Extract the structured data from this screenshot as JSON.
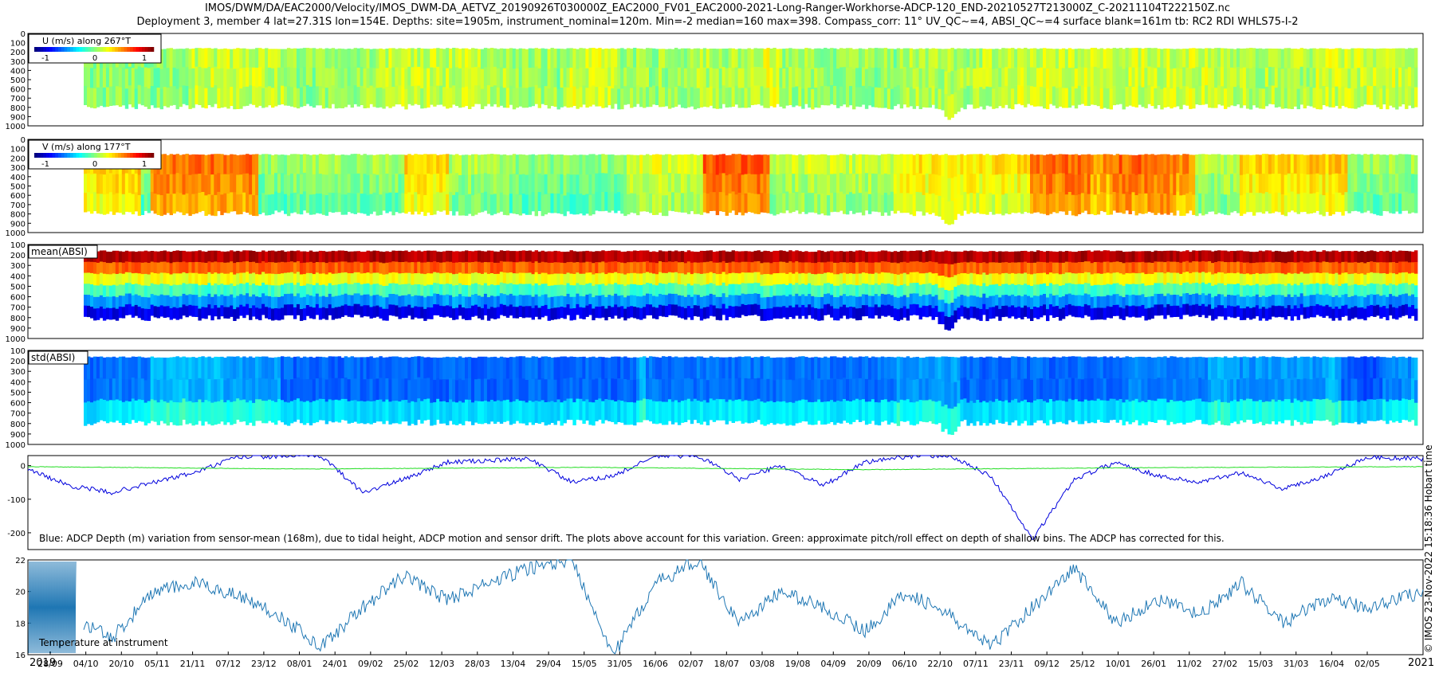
{
  "header": {
    "line1": "IMOS/DWM/DA/EAC2000/Velocity/IMOS_DWM-DA_AETVZ_20190926T030000Z_EAC2000_FV01_EAC2000-2021-Long-Ranger-Workhorse-ADCP-120_END-20210527T213000Z_C-20211104T222150Z.nc",
    "line2": "Deployment 3, member 4 lat=27.31S lon=154E. Depths: site=1905m, instrument_nominal=120m. Min=-2 median=160 max=398. Compass_corr: 11° UV_QC~=4, ABSI_QC~=4 surface blank=161m tb: RC2 RDI WHLS75-I-2"
  },
  "side_stamp": "© IMOS 23-Nov-2022 15:18:36 Hobart time",
  "year_labels": {
    "start": "2019",
    "end": "2021"
  },
  "chart_data": [
    {
      "type": "heatmap",
      "panel": "u",
      "legend_title": "U (m/s) along 267°T",
      "colorbar_ticks": [
        "-1",
        "0",
        "1"
      ],
      "y_ticks": [
        "0",
        "100",
        "200",
        "300",
        "400",
        "500",
        "600",
        "700",
        "800",
        "900",
        "1000"
      ],
      "ylim": [
        0,
        1000
      ],
      "depth_range": [
        160,
        780
      ],
      "dominant_color": "green"
    },
    {
      "type": "heatmap",
      "panel": "v",
      "legend_title": "V (m/s) along 177°T",
      "colorbar_ticks": [
        "-1",
        "0",
        "1"
      ],
      "y_ticks": [
        "0",
        "100",
        "200",
        "300",
        "400",
        "500",
        "600",
        "700",
        "800",
        "900",
        "1000"
      ],
      "ylim": [
        0,
        1000
      ],
      "depth_range": [
        160,
        780
      ],
      "dominant_color": "yellow-green"
    },
    {
      "type": "heatmap",
      "panel": "mean_absi",
      "legend_title": "mean(ABSI)",
      "y_ticks": [
        "100",
        "200",
        "300",
        "400",
        "500",
        "600",
        "700",
        "800",
        "900",
        "1000"
      ],
      "ylim": [
        100,
        1000
      ],
      "depth_range": [
        160,
        790
      ],
      "gradient": "red near surface to dark blue at depth"
    },
    {
      "type": "heatmap",
      "panel": "std_absi",
      "legend_title": "std(ABSI)",
      "y_ticks": [
        "100",
        "200",
        "300",
        "400",
        "500",
        "600",
        "700",
        "800",
        "900",
        "1000"
      ],
      "ylim": [
        100,
        1000
      ],
      "depth_range": [
        160,
        780
      ],
      "dominant_color": "blue"
    },
    {
      "type": "line",
      "panel": "depth",
      "annotation": "Blue: ADCP Depth (m) variation from sensor-mean (168m), due to tidal height, ADCP motion and sensor drift. The plots above account for this variation. Green: approximate pitch/roll effect on depth of shallow bins. The ADCP has corrected for this.",
      "y_ticks": [
        "0",
        "-100",
        "-200"
      ],
      "ylim": [
        -250,
        30
      ],
      "series": [
        {
          "color": "#0000dd",
          "x_frac": [
            0,
            0.03,
            0.06,
            0.09,
            0.12,
            0.15,
            0.18,
            0.21,
            0.24,
            0.27,
            0.3,
            0.33,
            0.36,
            0.39,
            0.42,
            0.45,
            0.48,
            0.51,
            0.54,
            0.57,
            0.6,
            0.63,
            0.66,
            0.69,
            0.72,
            0.75,
            0.78,
            0.81,
            0.84,
            0.87,
            0.9,
            0.93,
            0.96,
            1.0
          ],
          "y": [
            -10,
            -60,
            -80,
            -50,
            -20,
            25,
            28,
            30,
            -80,
            -40,
            10,
            15,
            20,
            -50,
            -30,
            28,
            30,
            -40,
            0,
            -60,
            10,
            28,
            30,
            -30,
            -220,
            -40,
            10,
            -30,
            -50,
            -20,
            -70,
            -30,
            25,
            20
          ]
        },
        {
          "color": "#22dd22",
          "x_frac": [
            0,
            0.2,
            0.4,
            0.6,
            0.8,
            1.0
          ],
          "y": [
            -3,
            -10,
            -5,
            -12,
            -6,
            -3
          ]
        }
      ]
    },
    {
      "type": "line",
      "panel": "temperature",
      "legend_title": "Temperature at instrument",
      "y_ticks": [
        "22",
        "20",
        "18",
        "16"
      ],
      "ylim": [
        16,
        22
      ],
      "series": [
        {
          "color": "#1f77b4",
          "x_frac": [
            0.04,
            0.06,
            0.09,
            0.12,
            0.15,
            0.18,
            0.21,
            0.24,
            0.27,
            0.3,
            0.33,
            0.36,
            0.39,
            0.42,
            0.45,
            0.48,
            0.51,
            0.54,
            0.57,
            0.6,
            0.63,
            0.66,
            0.69,
            0.72,
            0.75,
            0.78,
            0.81,
            0.84,
            0.87,
            0.9,
            0.93,
            0.96,
            1.0
          ],
          "y": [
            18,
            17,
            20,
            20.5,
            19.8,
            18.5,
            16.5,
            19,
            21,
            19.5,
            20.5,
            21.5,
            22,
            16,
            20.5,
            22,
            18,
            20,
            19,
            17.5,
            20,
            18.5,
            16.5,
            19,
            21.5,
            18,
            19.5,
            18.5,
            20.5,
            18,
            19.5,
            19,
            20
          ]
        }
      ]
    }
  ],
  "x_axis": {
    "tick_labels": [
      "28/09",
      "04/10",
      "20/10",
      "05/11",
      "21/11",
      "07/12",
      "23/12",
      "08/01",
      "24/01",
      "09/02",
      "25/02",
      "12/03",
      "28/03",
      "13/04",
      "29/04",
      "15/05",
      "31/05",
      "16/06",
      "02/07",
      "18/07",
      "03/08",
      "19/08",
      "04/09",
      "20/09",
      "06/10",
      "22/10",
      "07/11",
      "23/11",
      "09/12",
      "25/12",
      "10/01",
      "26/01",
      "11/02",
      "27/02",
      "15/03",
      "31/03",
      "16/04",
      "02/05"
    ]
  }
}
